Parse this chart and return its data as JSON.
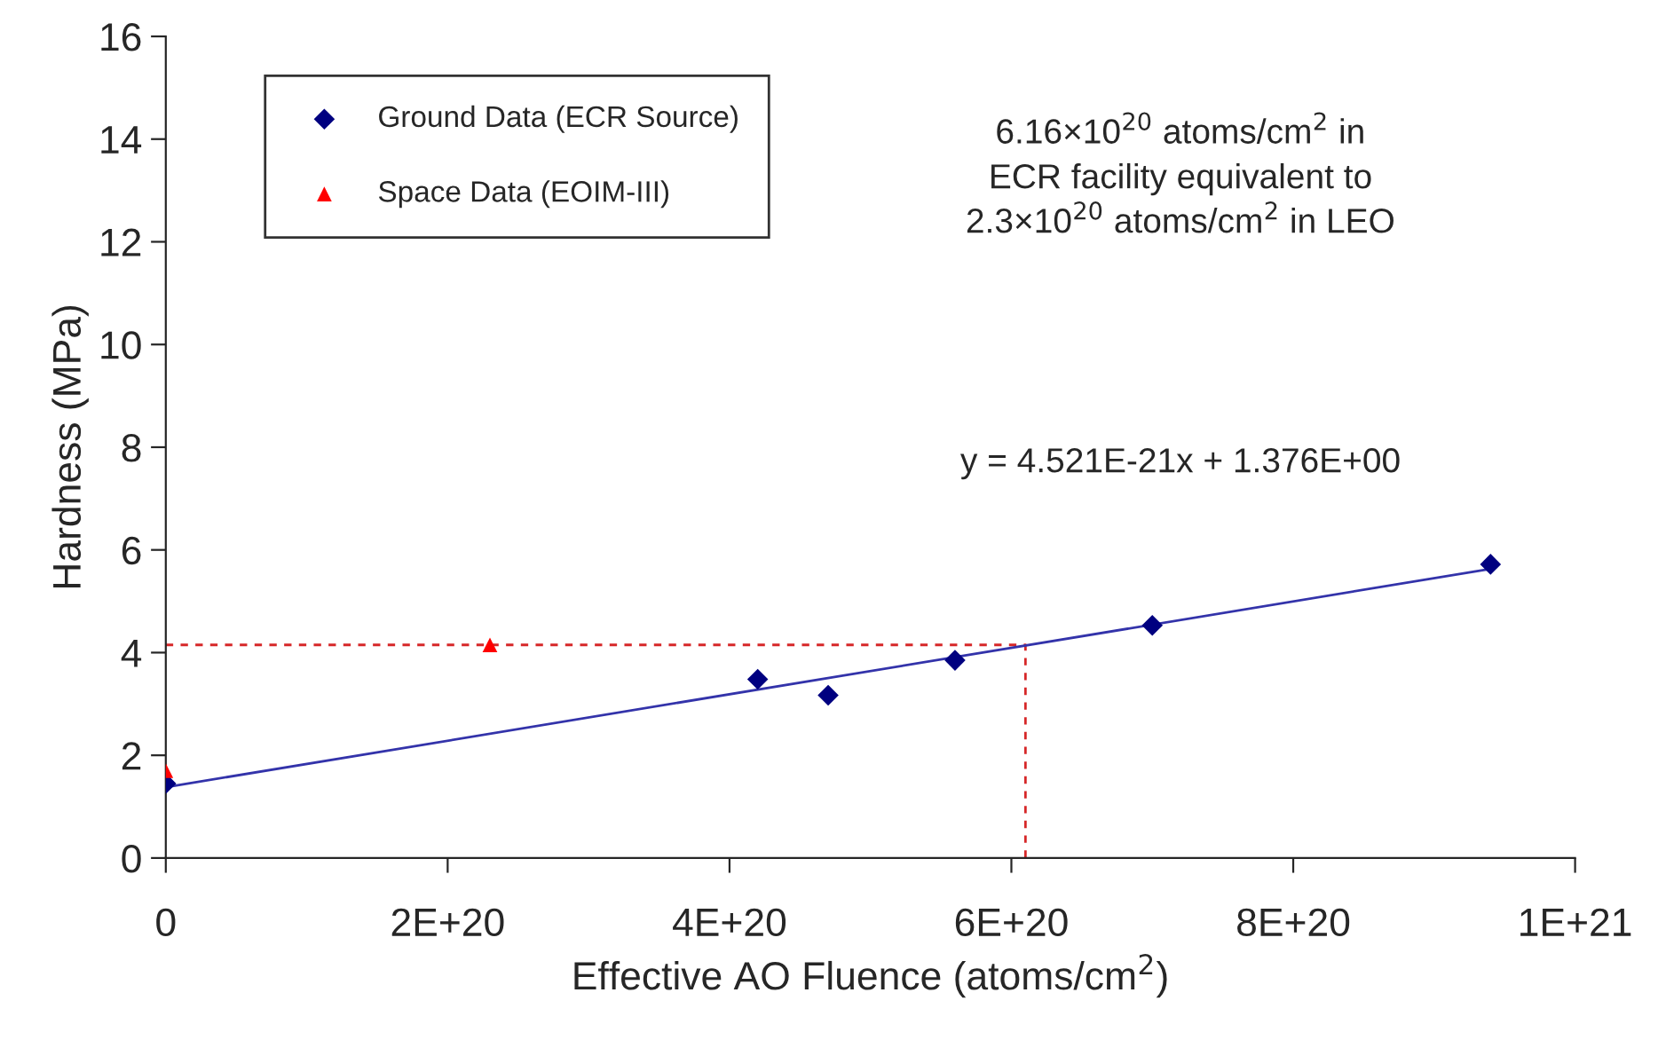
{
  "chart_data": {
    "type": "scatter",
    "xlabel": "Effective AO Fluence (atoms/cm$^{2}$)",
    "ylabel": "Hardness (MPa)",
    "xlim": [
      0,
      1e+21
    ],
    "ylim": [
      0,
      16
    ],
    "xticks": [
      0,
      {
        "value": 2e+20,
        "label": "2E+20"
      },
      {
        "value": 4e+20,
        "label": "4E+20"
      },
      {
        "value": 6e+20,
        "label": "6E+20"
      },
      {
        "value": 8e+20,
        "label": "8E+20"
      },
      {
        "value": 1e+21,
        "label": "1E+21"
      }
    ],
    "yticks": [
      0,
      2,
      4,
      6,
      8,
      10,
      12,
      14,
      16
    ],
    "grid": false,
    "legend": "top left",
    "annotations": [
      "6.16×10$^{20}$ atoms/cm$^{2}$ in\nECR facility equivalent to\n2.3×10$^{20}$ atoms/cm$^{2}$ in LEO",
      "y = 4.521E-21x + 1.376E+00"
    ],
    "series": [
      {
        "type": "line",
        "color": "#d62728",
        "line_style": "dashed",
        "marker": "none",
        "x": [
          0,
          6.1e+20,
          6.1e+20
        ],
        "values": [
          4.15,
          4.15,
          0
        ]
      },
      {
        "type": "line",
        "color": "#3333aa",
        "line_style": "solid",
        "marker": "none",
        "x": [
          0,
          9.4e+20
        ],
        "values": [
          1.38,
          5.63
        ]
      },
      {
        "name": "Ground Data (ECR Source)",
        "color": "#000080",
        "marker": "diamond",
        "x": [
          0,
          4.2e+20,
          4.7e+20,
          5.6e+20,
          7e+20,
          9.4e+20
        ],
        "values": [
          1.45,
          3.48,
          3.17,
          3.85,
          4.53,
          5.72
        ]
      },
      {
        "name": "Space Data (EOIM-III)",
        "color": "#ff0000",
        "marker": "triangle",
        "x": [
          0,
          2.3e+20
        ],
        "values": [
          1.7,
          4.15
        ]
      }
    ]
  }
}
